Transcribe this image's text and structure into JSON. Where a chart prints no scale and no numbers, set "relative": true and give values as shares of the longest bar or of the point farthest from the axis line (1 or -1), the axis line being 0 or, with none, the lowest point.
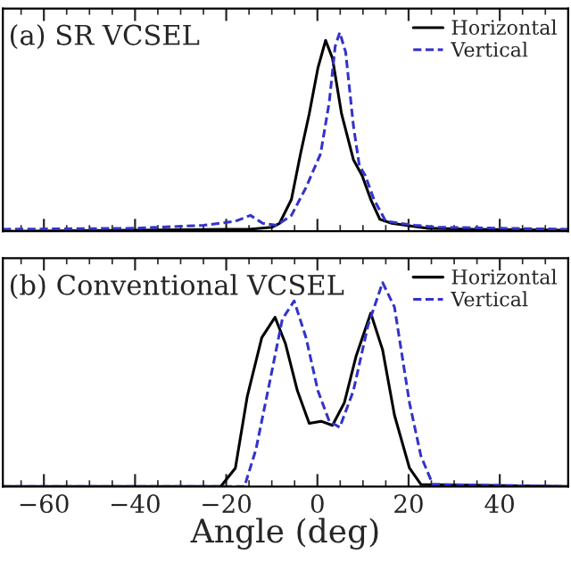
{
  "chart_data": [
    {
      "type": "line",
      "title": "(a) SR VCSEL",
      "relative": true,
      "xlim": [
        -69,
        55
      ],
      "xticks": [
        {
          "value": -60,
          "label": null
        },
        {
          "value": -40,
          "label": null
        },
        {
          "value": -20,
          "label": null
        },
        {
          "value": 0,
          "label": null
        },
        {
          "value": 20,
          "label": null
        },
        {
          "value": 40,
          "label": null
        }
      ],
      "tick_labels": false,
      "legend": "top right",
      "grid": false,
      "series": [
        {
          "name": "Horizontal",
          "color": "#000000",
          "line_style": "solid",
          "x": [
            -69,
            -40,
            -20,
            -15,
            -10,
            -8.3,
            -5.7,
            -3.7,
            -1.8,
            0.1,
            1.8,
            3.3,
            5.3,
            7.9,
            9.8,
            11.7,
            13.7,
            16.3,
            24,
            34,
            55
          ],
          "values": [
            0,
            0.005,
            0.01,
            0.01,
            0.02,
            0.04,
            0.16,
            0.39,
            0.59,
            0.82,
            0.96,
            0.87,
            0.59,
            0.36,
            0.28,
            0.16,
            0.06,
            0.04,
            0.015,
            0.01,
            0.005
          ]
        },
        {
          "name": "Vertical",
          "color": "#3333cc",
          "line_style": "dashed",
          "x": [
            -69,
            -40,
            -25,
            -18,
            -14.7,
            -12,
            -8.9,
            -5.7,
            -2.5,
            0.7,
            2.6,
            3.9,
            4.9,
            6.2,
            7.9,
            9.2,
            10.5,
            12.4,
            15,
            21.4,
            26.6,
            55
          ],
          "values": [
            0.01,
            0.015,
            0.03,
            0.05,
            0.08,
            0.04,
            0.03,
            0.08,
            0.22,
            0.39,
            0.65,
            0.93,
            1.0,
            0.9,
            0.53,
            0.33,
            0.28,
            0.16,
            0.05,
            0.03,
            0.02,
            0.01
          ]
        }
      ]
    },
    {
      "type": "line",
      "title": "(b) Conventional VCSEL",
      "xlabel": "Angle (deg)",
      "relative": true,
      "xlim": [
        -69,
        55
      ],
      "xticks": [
        -60,
        -40,
        -20,
        0,
        20,
        40
      ],
      "tick_labels": "x",
      "legend": "top right",
      "grid": false,
      "series": [
        {
          "name": "Horizontal",
          "color": "#000000",
          "line_style": "solid",
          "x": [
            -69,
            -21.2,
            -18,
            -15.4,
            -12.2,
            -9.3,
            -7,
            -4.4,
            -1.8,
            0.8,
            3.3,
            5.9,
            8.5,
            11.7,
            14.3,
            16.9,
            20.2,
            22.7,
            55
          ],
          "values": [
            0,
            0,
            0.09,
            0.44,
            0.73,
            0.83,
            0.7,
            0.47,
            0.31,
            0.32,
            0.3,
            0.41,
            0.64,
            0.85,
            0.67,
            0.35,
            0.09,
            0.01,
            0
          ]
        },
        {
          "name": "Vertical",
          "color": "#3333cc",
          "line_style": "dashed",
          "x": [
            -69,
            -16,
            -13.5,
            -10.3,
            -7.7,
            -5.1,
            -2.5,
            0.1,
            2.6,
            4.9,
            7.9,
            11.1,
            14.3,
            16.9,
            20.2,
            22.7,
            25.3,
            55
          ],
          "values": [
            0,
            0,
            0.18,
            0.53,
            0.82,
            0.91,
            0.73,
            0.47,
            0.32,
            0.29,
            0.47,
            0.79,
            1.0,
            0.88,
            0.41,
            0.15,
            0.01,
            0
          ]
        }
      ]
    }
  ]
}
